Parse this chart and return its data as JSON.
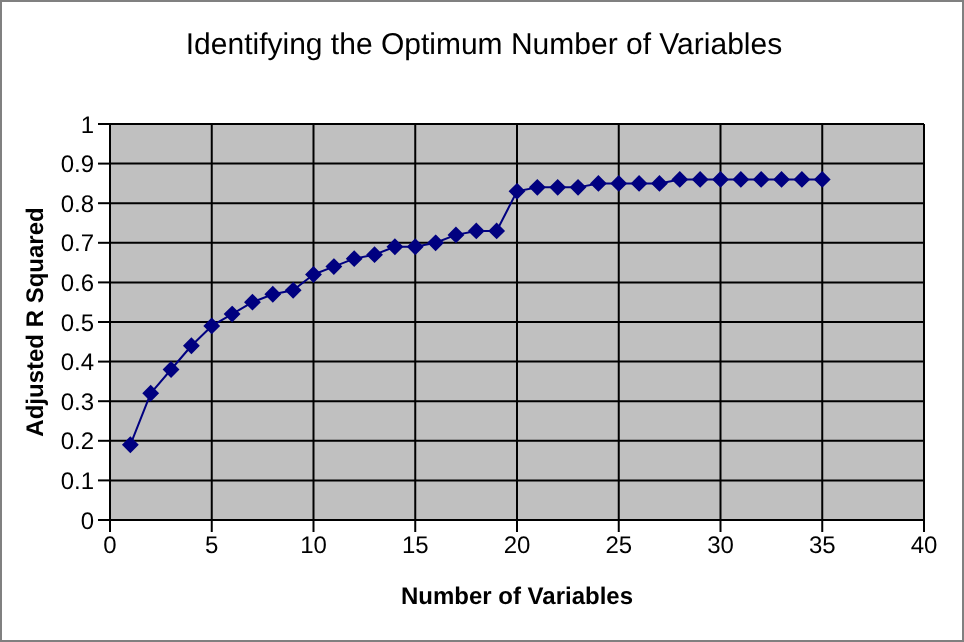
{
  "chart_data": {
    "type": "line",
    "title": "Identifying the Optimum Number of Variables",
    "xlabel": "Number of Variables",
    "ylabel": "Adjusted R Squared",
    "x": [
      1,
      2,
      3,
      4,
      5,
      6,
      7,
      8,
      9,
      10,
      11,
      12,
      13,
      14,
      15,
      16,
      17,
      18,
      19,
      20,
      21,
      22,
      23,
      24,
      25,
      26,
      27,
      28,
      29,
      30,
      31,
      32,
      33,
      34,
      35
    ],
    "series": [
      {
        "color": "#000080",
        "values": [
          0.19,
          0.32,
          0.38,
          0.44,
          0.49,
          0.52,
          0.55,
          0.57,
          0.58,
          0.62,
          0.64,
          0.66,
          0.67,
          0.69,
          0.69,
          0.7,
          0.72,
          0.73,
          0.73,
          0.83,
          0.84,
          0.84,
          0.84,
          0.85,
          0.85,
          0.85,
          0.85,
          0.86,
          0.86,
          0.86,
          0.86,
          0.86,
          0.86,
          0.86,
          0.86
        ]
      }
    ],
    "xlim": [
      0,
      40
    ],
    "xticks": [
      0,
      5,
      10,
      15,
      20,
      25,
      30,
      35,
      40
    ],
    "ylim": [
      0,
      1
    ],
    "yticks": [
      0,
      0.1,
      0.2,
      0.3,
      0.4,
      0.5,
      0.6,
      0.7,
      0.8,
      0.9,
      1
    ],
    "grid": true,
    "marker": "diamond",
    "line_style": "solid",
    "legend": false
  }
}
